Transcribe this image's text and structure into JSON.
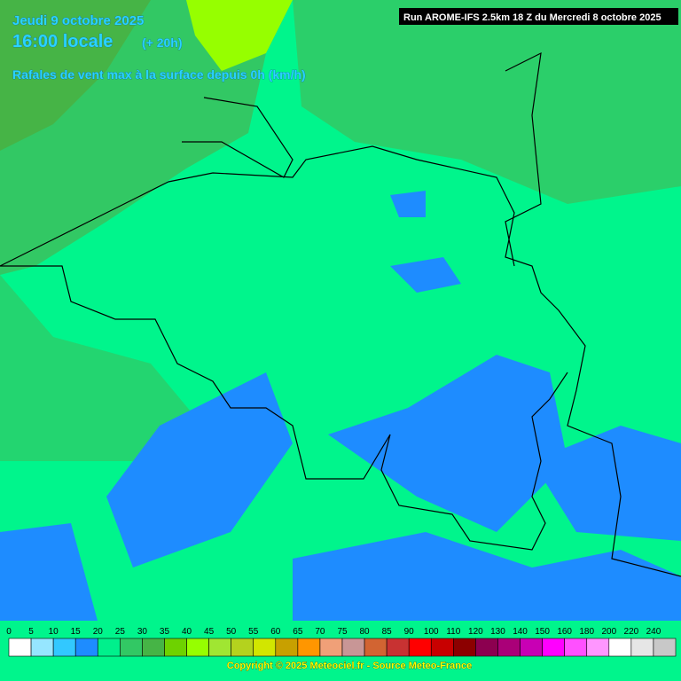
{
  "header": {
    "date": "Jeudi 9 octobre 2025",
    "time": "16:00 locale",
    "offset": "(+ 20h)",
    "parameter": "Rafales de vent max à la surface depuis 0h (km/h)",
    "run": "Run AROME-IFS 2.5km 18 Z du Mercredi 8 octobre 2025"
  },
  "legend": {
    "labels": [
      0,
      5,
      10,
      15,
      20,
      25,
      30,
      35,
      40,
      45,
      50,
      55,
      60,
      65,
      70,
      75,
      80,
      85,
      90,
      100,
      110,
      120,
      130,
      140,
      150,
      160,
      180,
      200,
      220,
      240
    ],
    "colors": [
      "#ffffff",
      "#96e6ff",
      "#32c8ff",
      "#1e8cff",
      "#00f08c",
      "#32c864",
      "#46b446",
      "#6ed200",
      "#96ff00",
      "#a0e632",
      "#b4d21e",
      "#d2e600",
      "#c8a000",
      "#ff9600",
      "#f0a078",
      "#c89696",
      "#d26432",
      "#c83232",
      "#ff0000",
      "#c80000",
      "#8c0000",
      "#8c0050",
      "#aa0078",
      "#c800b4",
      "#ff00ff",
      "#ff50ff",
      "#ff96ff",
      "#ffffff",
      "#e6e6e6",
      "#c8c8c8"
    ]
  },
  "footer": "Copyright © 2025 Meteociel.fr - Source Meteo-France"
}
